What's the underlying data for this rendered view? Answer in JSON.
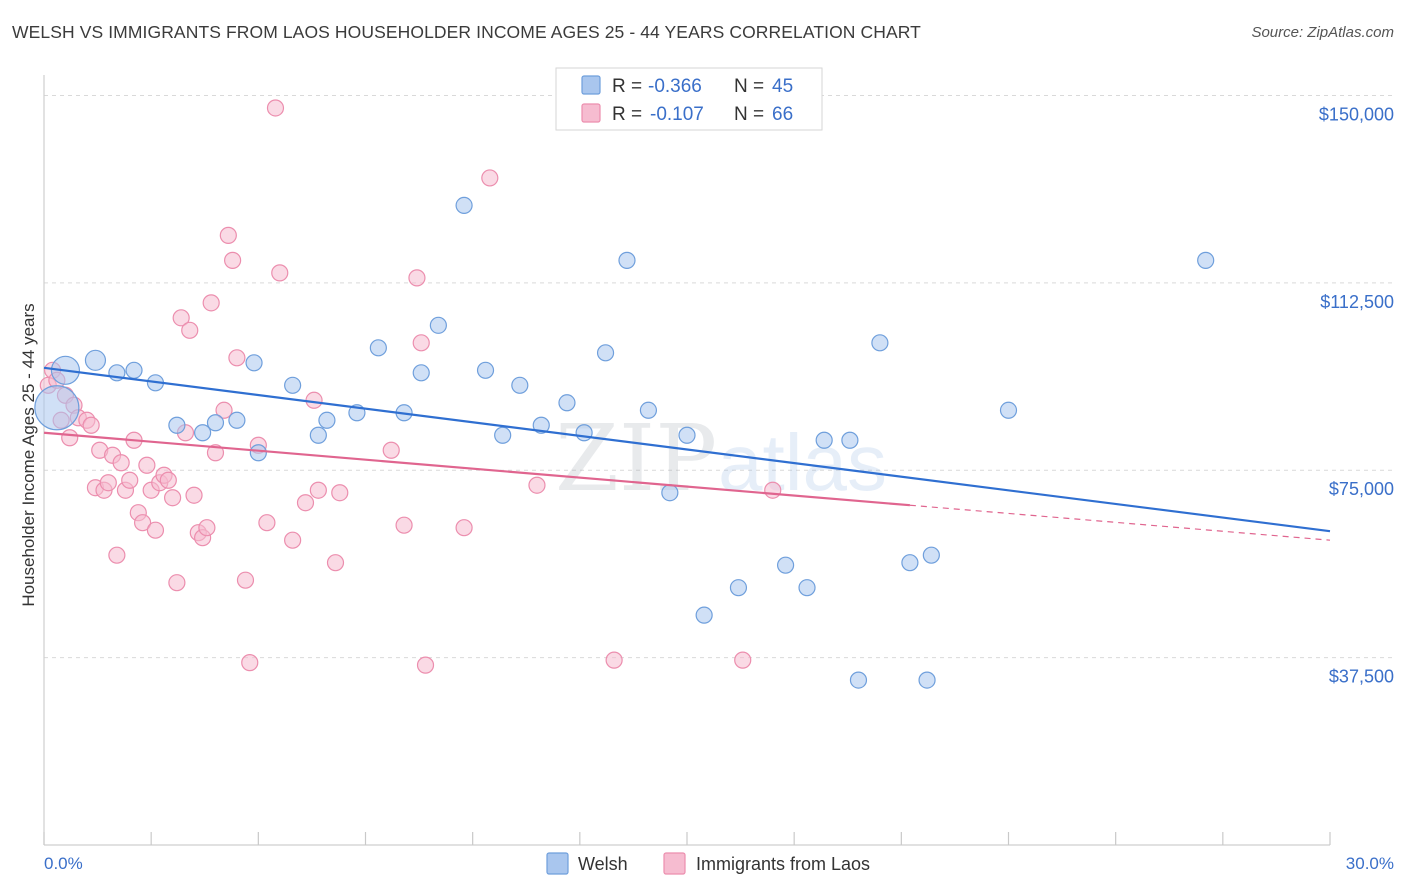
{
  "title": "WELSH VS IMMIGRANTS FROM LAOS HOUSEHOLDER INCOME AGES 25 - 44 YEARS CORRELATION CHART",
  "source": "Source: ZipAtlas.com",
  "watermark": {
    "zip": "ZIP",
    "atlas": "atlas"
  },
  "legend": {
    "r_label": "R =",
    "n_label": "N =",
    "rows": [
      {
        "r": "-0.366",
        "n": "45"
      },
      {
        "r": "-0.107",
        "n": "66"
      }
    ]
  },
  "colors": {
    "welsh_fill": "#a9c6ee",
    "welsh_stroke": "#6f9fdc",
    "welsh_line": "#2f6fd1",
    "laos_fill": "#f6bcd0",
    "laos_stroke": "#ec8eae",
    "laos_line": "#e0658f",
    "tick_text": "#3a6fc9",
    "grid": "#d9d9d9"
  },
  "chart_data": {
    "type": "scatter",
    "title": "WELSH VS IMMIGRANTS FROM LAOS HOUSEHOLDER INCOME AGES 25 - 44 YEARS CORRELATION CHART",
    "xlabel": "",
    "ylabel": "Householder Income Ages 25 - 44 years",
    "xlim": [
      0,
      30
    ],
    "ylim": [
      0,
      157500
    ],
    "x_tick_labels": [
      "0.0%",
      "30.0%"
    ],
    "y_ticks": [
      37500,
      75000,
      112500,
      150000
    ],
    "y_tick_labels": [
      "$37,500",
      "$75,000",
      "$112,500",
      "$150,000"
    ],
    "grid": true,
    "legend_position": "bottom",
    "series": [
      {
        "name": "Welsh",
        "trend": {
          "x": [
            0,
            30
          ],
          "y": [
            95500,
            62800
          ]
        },
        "points": [
          [
            0.3,
            87500,
            22
          ],
          [
            0.5,
            95000,
            14
          ],
          [
            1.2,
            97000,
            10
          ],
          [
            1.7,
            94500,
            8
          ],
          [
            2.1,
            95000,
            8
          ],
          [
            2.6,
            92500,
            8
          ],
          [
            3.1,
            84000,
            8
          ],
          [
            3.7,
            82500,
            8
          ],
          [
            4.0,
            84500,
            8
          ],
          [
            4.5,
            85000,
            8
          ],
          [
            4.9,
            96500,
            8
          ],
          [
            5.0,
            78500,
            8
          ],
          [
            5.8,
            92000,
            8
          ],
          [
            6.4,
            82000,
            8
          ],
          [
            6.6,
            85000,
            8
          ],
          [
            7.3,
            86500,
            8
          ],
          [
            7.8,
            99500,
            8
          ],
          [
            8.4,
            86500,
            8
          ],
          [
            8.8,
            94500,
            8
          ],
          [
            9.2,
            104000,
            8
          ],
          [
            9.8,
            128000,
            8
          ],
          [
            10.3,
            95000,
            8
          ],
          [
            10.7,
            82000,
            8
          ],
          [
            11.1,
            92000,
            8
          ],
          [
            11.6,
            84000,
            8
          ],
          [
            12.2,
            88500,
            8
          ],
          [
            12.6,
            82500,
            8
          ],
          [
            13.1,
            98500,
            8
          ],
          [
            13.6,
            117000,
            8
          ],
          [
            14.1,
            87000,
            8
          ],
          [
            14.6,
            70500,
            8
          ],
          [
            15.0,
            82000,
            8
          ],
          [
            15.4,
            46000,
            8
          ],
          [
            16.2,
            51500,
            8
          ],
          [
            17.3,
            56000,
            8
          ],
          [
            17.8,
            51500,
            8
          ],
          [
            18.2,
            81000,
            8
          ],
          [
            18.8,
            81000,
            8
          ],
          [
            19.0,
            33000,
            8
          ],
          [
            19.5,
            100500,
            8
          ],
          [
            20.2,
            56500,
            8
          ],
          [
            20.6,
            33000,
            8
          ],
          [
            20.7,
            58000,
            8
          ],
          [
            22.5,
            87000,
            8
          ],
          [
            27.1,
            117000,
            8
          ]
        ]
      },
      {
        "name": "Immigrants from Laos",
        "trend": {
          "x": [
            0,
            20.2
          ],
          "y": [
            82500,
            68000
          ]
        },
        "trend_dashed": {
          "x": [
            20.2,
            30
          ],
          "y": [
            68000,
            61000
          ]
        },
        "points": [
          [
            0.1,
            92000,
            8
          ],
          [
            0.2,
            95000,
            8
          ],
          [
            0.3,
            93000,
            8
          ],
          [
            0.4,
            85000,
            8
          ],
          [
            0.5,
            90000,
            8
          ],
          [
            0.6,
            81500,
            8
          ],
          [
            0.7,
            88000,
            8
          ],
          [
            0.8,
            85500,
            8
          ],
          [
            1.0,
            85000,
            8
          ],
          [
            1.1,
            84000,
            8
          ],
          [
            1.2,
            71500,
            8
          ],
          [
            1.3,
            79000,
            8
          ],
          [
            1.4,
            71000,
            8
          ],
          [
            1.5,
            72500,
            8
          ],
          [
            1.6,
            78000,
            8
          ],
          [
            1.7,
            58000,
            8
          ],
          [
            1.8,
            76500,
            8
          ],
          [
            1.9,
            71000,
            8
          ],
          [
            2.0,
            73000,
            8
          ],
          [
            2.1,
            81000,
            8
          ],
          [
            2.2,
            66500,
            8
          ],
          [
            2.3,
            64500,
            8
          ],
          [
            2.4,
            76000,
            8
          ],
          [
            2.5,
            71000,
            8
          ],
          [
            2.6,
            63000,
            8
          ],
          [
            2.7,
            72500,
            8
          ],
          [
            2.8,
            74000,
            8
          ],
          [
            2.9,
            73000,
            8
          ],
          [
            3.0,
            69500,
            8
          ],
          [
            3.1,
            52500,
            8
          ],
          [
            3.2,
            105500,
            8
          ],
          [
            3.3,
            82500,
            8
          ],
          [
            3.4,
            103000,
            8
          ],
          [
            3.5,
            70000,
            8
          ],
          [
            3.6,
            62500,
            8
          ],
          [
            3.7,
            61500,
            8
          ],
          [
            3.8,
            63500,
            8
          ],
          [
            3.9,
            108500,
            8
          ],
          [
            4.0,
            78500,
            8
          ],
          [
            4.2,
            87000,
            8
          ],
          [
            4.3,
            122000,
            8
          ],
          [
            4.4,
            117000,
            8
          ],
          [
            4.5,
            97500,
            8
          ],
          [
            4.7,
            53000,
            8
          ],
          [
            4.8,
            36500,
            8
          ],
          [
            5.0,
            80000,
            8
          ],
          [
            5.2,
            64500,
            8
          ],
          [
            5.4,
            147500,
            8
          ],
          [
            5.5,
            114500,
            8
          ],
          [
            5.8,
            61000,
            8
          ],
          [
            6.1,
            68500,
            8
          ],
          [
            6.3,
            89000,
            8
          ],
          [
            6.4,
            71000,
            8
          ],
          [
            6.8,
            56500,
            8
          ],
          [
            6.9,
            70500,
            8
          ],
          [
            8.1,
            79000,
            8
          ],
          [
            8.4,
            64000,
            8
          ],
          [
            8.7,
            113500,
            8
          ],
          [
            8.8,
            100500,
            8
          ],
          [
            8.9,
            36000,
            8
          ],
          [
            9.8,
            63500,
            8
          ],
          [
            10.4,
            133500,
            8
          ],
          [
            11.5,
            72000,
            8
          ],
          [
            13.3,
            37000,
            8
          ],
          [
            16.3,
            37000,
            8
          ],
          [
            17.0,
            71000,
            8
          ]
        ]
      }
    ]
  }
}
